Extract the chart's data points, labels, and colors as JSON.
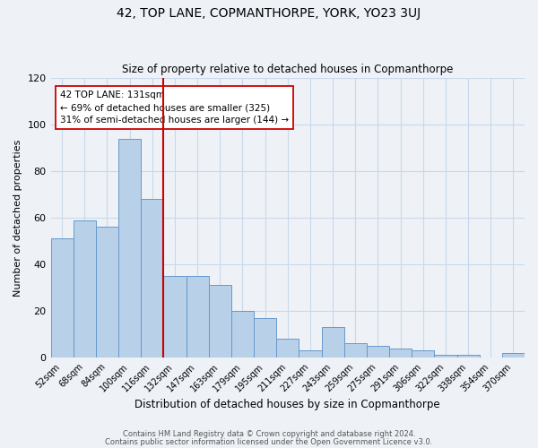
{
  "title": "42, TOP LANE, COPMANTHORPE, YORK, YO23 3UJ",
  "subtitle": "Size of property relative to detached houses in Copmanthorpe",
  "xlabel": "Distribution of detached houses by size in Copmanthorpe",
  "ylabel": "Number of detached properties",
  "bar_labels": [
    "52sqm",
    "68sqm",
    "84sqm",
    "100sqm",
    "116sqm",
    "132sqm",
    "147sqm",
    "163sqm",
    "179sqm",
    "195sqm",
    "211sqm",
    "227sqm",
    "243sqm",
    "259sqm",
    "275sqm",
    "291sqm",
    "306sqm",
    "322sqm",
    "338sqm",
    "354sqm",
    "370sqm"
  ],
  "bar_values": [
    51,
    59,
    56,
    94,
    68,
    35,
    35,
    31,
    20,
    17,
    8,
    3,
    13,
    6,
    5,
    4,
    3,
    1,
    1,
    0,
    2
  ],
  "bar_color": "#b8d0e8",
  "bar_edge_color": "#6699cc",
  "grid_color": "#c8d8ea",
  "background_color": "#eef2f7",
  "red_line_color": "#cc0000",
  "red_line_between": 4,
  "annotation_text": "42 TOP LANE: 131sqm\n← 69% of detached houses are smaller (325)\n31% of semi-detached houses are larger (144) →",
  "annotation_box_color": "#ffffff",
  "annotation_box_edge": "#cc0000",
  "ylim": [
    0,
    120
  ],
  "yticks": [
    0,
    20,
    40,
    60,
    80,
    100,
    120
  ],
  "footer_line1": "Contains HM Land Registry data © Crown copyright and database right 2024.",
  "footer_line2": "Contains public sector information licensed under the Open Government Licence v3.0."
}
